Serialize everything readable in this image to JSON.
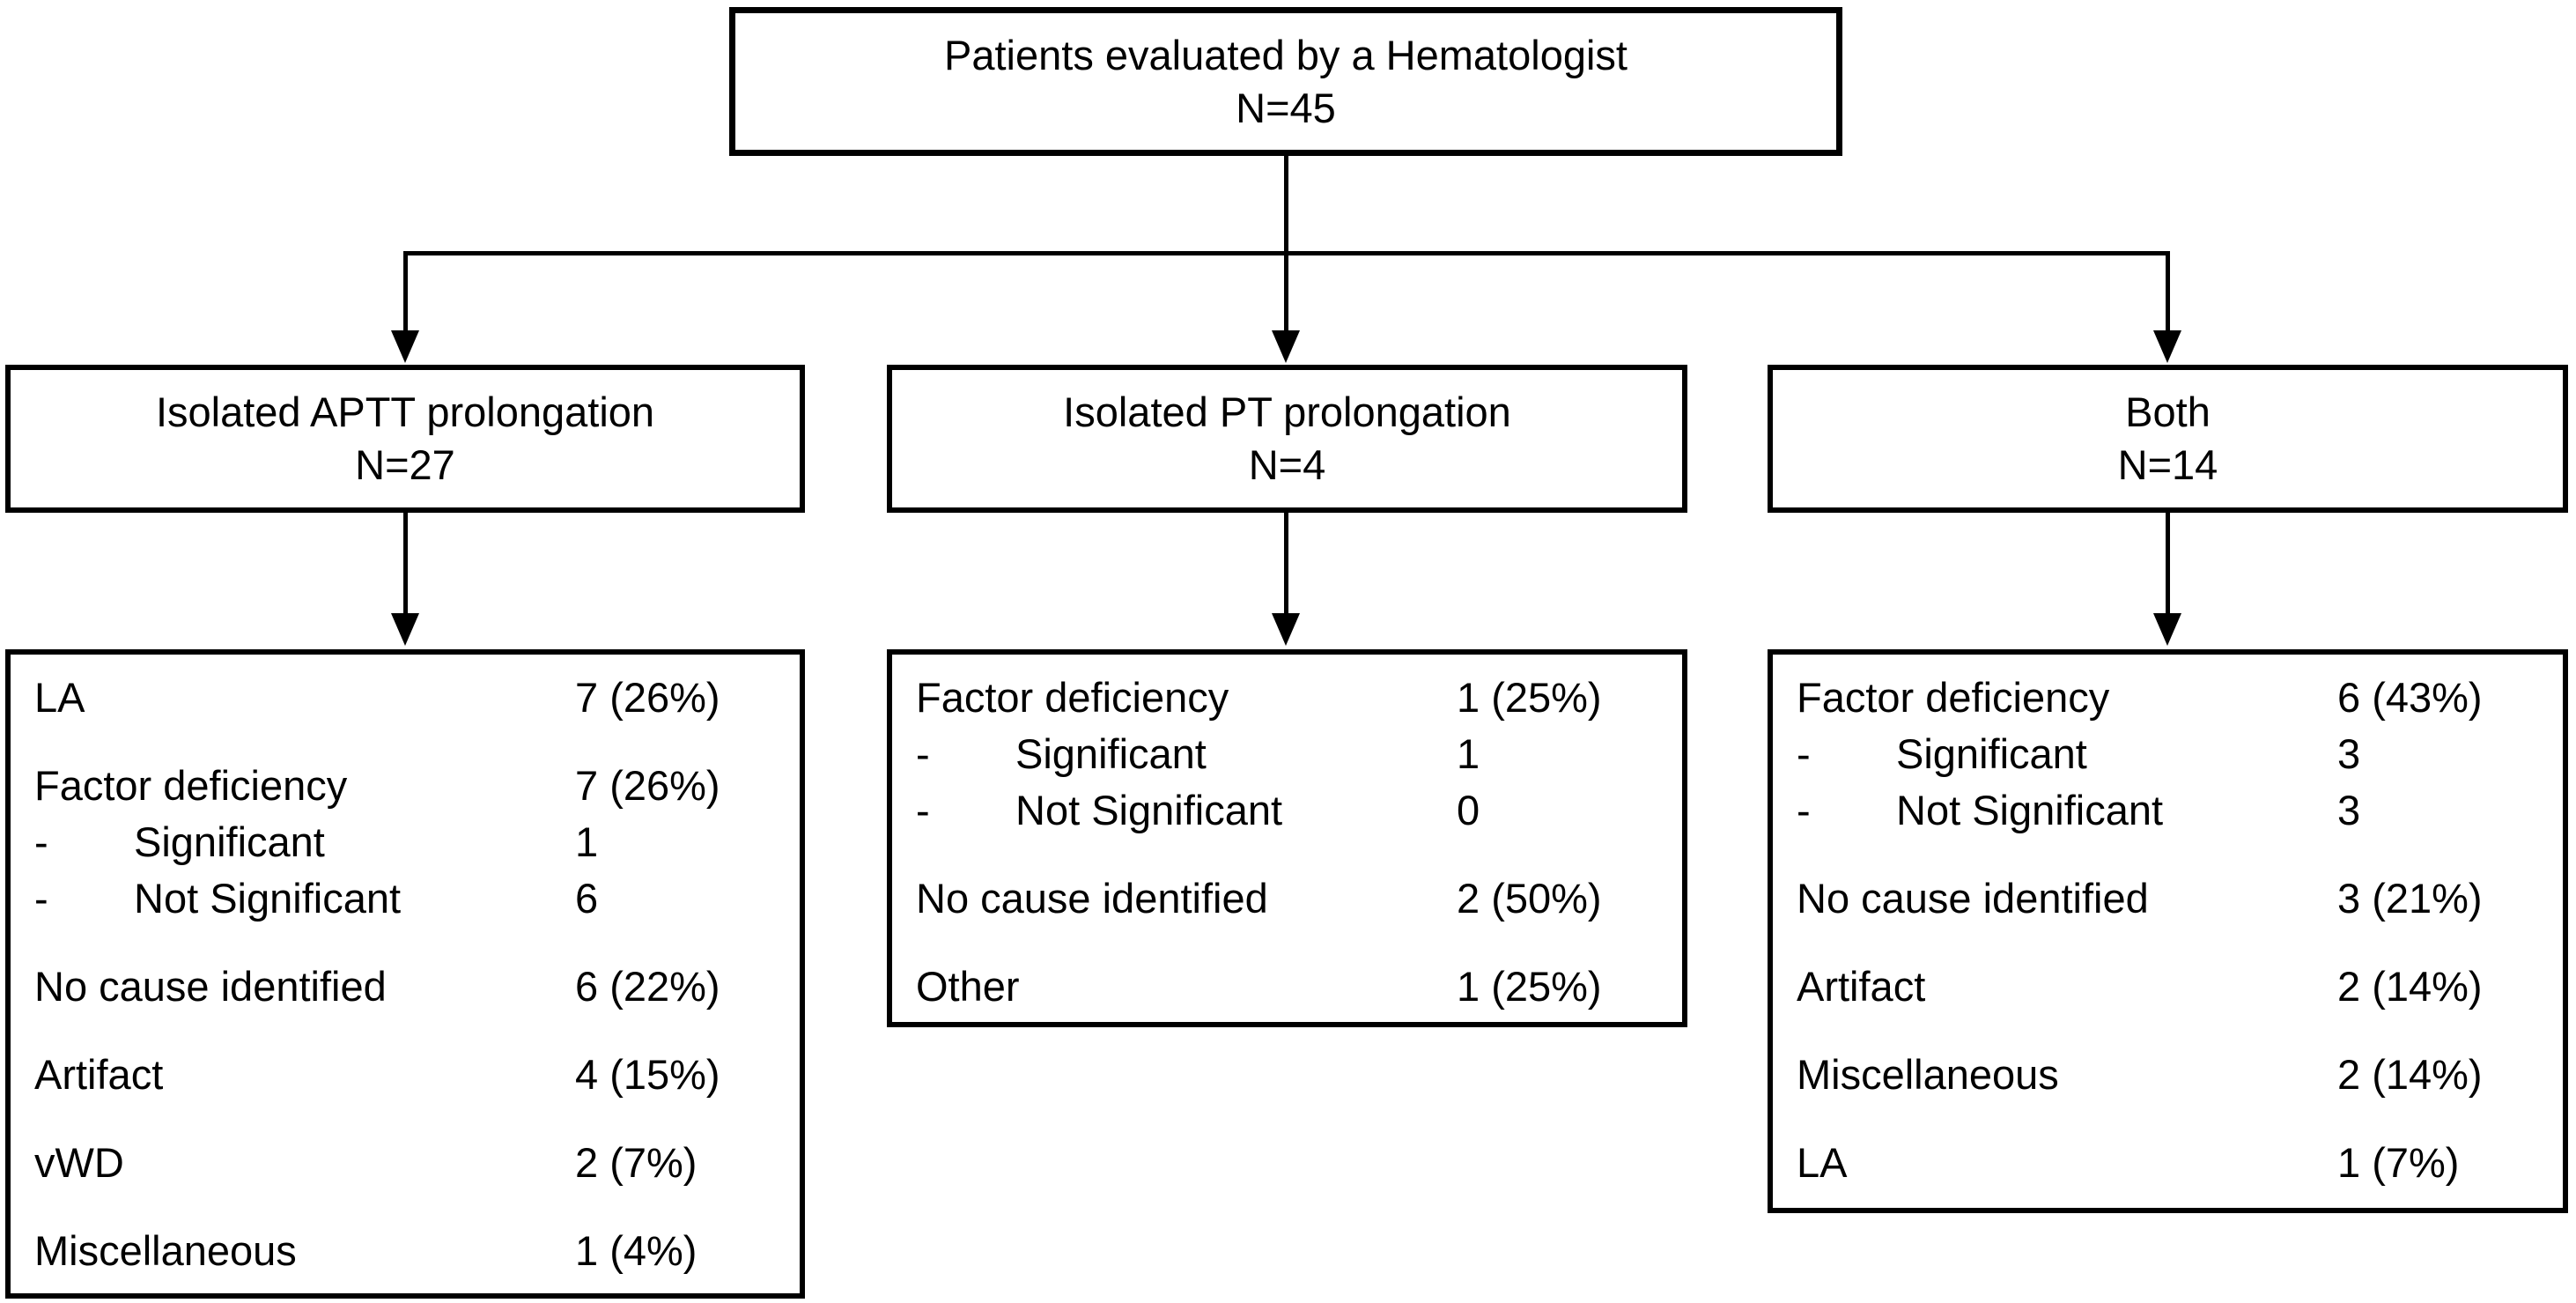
{
  "figure": {
    "colors": {
      "line": "#000000",
      "background": "#ffffff",
      "text": "#000000"
    },
    "sub_marker": "-",
    "root": {
      "title": "Patients evaluated by a Hematologist",
      "count": "N=45"
    },
    "branches": [
      {
        "title": "Isolated APTT prolongation",
        "count": "N=27",
        "rows": [
          {
            "label": "LA",
            "value": "7 (26%)",
            "sub": false
          },
          {
            "label": "Factor deficiency",
            "value": "7 (26%)",
            "sub": false
          },
          {
            "label": "Significant",
            "value": "1",
            "sub": true
          },
          {
            "label": "Not Significant",
            "value": "6",
            "sub": true
          },
          {
            "label": "No cause identified",
            "value": "6 (22%)",
            "sub": false
          },
          {
            "label": "Artifact",
            "value": "4 (15%)",
            "sub": false
          },
          {
            "label": "vWD",
            "value": "2 (7%)",
            "sub": false
          },
          {
            "label": "Miscellaneous",
            "value": "1 (4%)",
            "sub": false
          }
        ]
      },
      {
        "title": "Isolated PT prolongation",
        "count": "N=4",
        "rows": [
          {
            "label": "Factor deficiency",
            "value": "1 (25%)",
            "sub": false
          },
          {
            "label": "Significant",
            "value": "1",
            "sub": true
          },
          {
            "label": "Not Significant",
            "value": "0",
            "sub": true
          },
          {
            "label": "No cause identified",
            "value": "2 (50%)",
            "sub": false
          },
          {
            "label": "Other",
            "value": "1 (25%)",
            "sub": false
          }
        ]
      },
      {
        "title": "Both",
        "count": "N=14",
        "rows": [
          {
            "label": "Factor deficiency",
            "value": "6 (43%)",
            "sub": false
          },
          {
            "label": "Significant",
            "value": "3",
            "sub": true
          },
          {
            "label": "Not Significant",
            "value": "3",
            "sub": true
          },
          {
            "label": "No cause identified",
            "value": "3 (21%)",
            "sub": false
          },
          {
            "label": "Artifact",
            "value": "2 (14%)",
            "sub": false
          },
          {
            "label": "Miscellaneous",
            "value": "2 (14%)",
            "sub": false
          },
          {
            "label": "LA",
            "value": "1 (7%)",
            "sub": false
          }
        ]
      }
    ]
  }
}
